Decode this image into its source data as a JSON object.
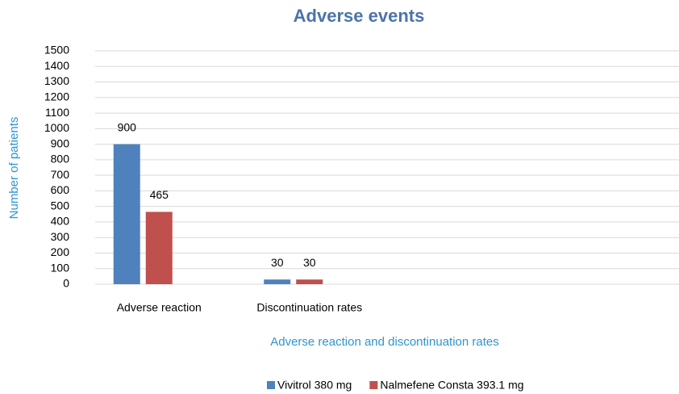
{
  "chart_data": {
    "type": "bar",
    "title": "Adverse events",
    "x_label": "Adverse reaction and discontinuation rates",
    "y_label": "Number of patients",
    "categories": [
      "Adverse reaction",
      "Discontinuation rates",
      null,
      null
    ],
    "series": [
      {
        "name": "Vivitrol 380 mg",
        "color": "#4f81bd",
        "values": [
          900,
          30,
          null,
          null
        ]
      },
      {
        "name": "Nalmefene Consta 393.1 mg",
        "color": "#c0504d",
        "values": [
          465,
          30,
          null,
          null
        ]
      }
    ],
    "ylim": [
      0,
      1500
    ],
    "yticks": [
      0,
      100,
      200,
      300,
      400,
      500,
      600,
      700,
      800,
      900,
      1000,
      1100,
      1200,
      1300,
      1400,
      1500
    ],
    "grid": true,
    "legend": "bottom"
  }
}
